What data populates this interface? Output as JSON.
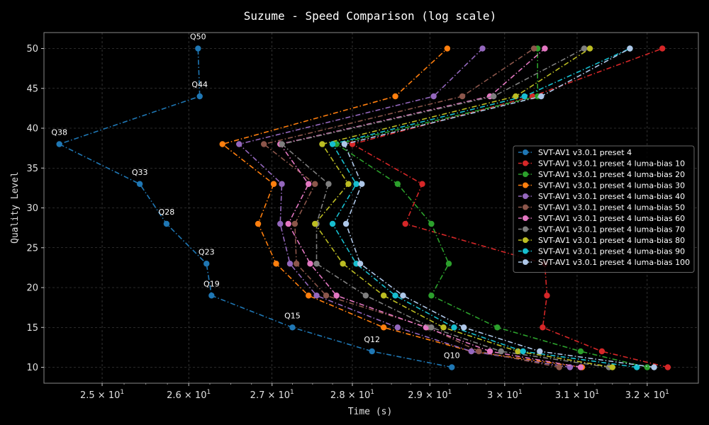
{
  "chart_data": {
    "type": "line",
    "title": "Suzume - Speed Comparison (log scale)",
    "xlabel": "Time (s)",
    "ylabel": "Quality Level",
    "x_scale": "log",
    "xlim": [
      24.35,
      32.75
    ],
    "ylim": [
      8.0,
      52.0
    ],
    "x_ticks": [
      {
        "value": 25,
        "base": "2.5",
        "exp": "1"
      },
      {
        "value": 26,
        "base": "2.6",
        "exp": "1"
      },
      {
        "value": 27,
        "base": "2.7",
        "exp": "1"
      },
      {
        "value": 28,
        "base": "2.8",
        "exp": "1"
      },
      {
        "value": 29,
        "base": "2.9",
        "exp": "1"
      },
      {
        "value": 30,
        "base": "3",
        "exp": "1"
      },
      {
        "value": 31,
        "base": "3.1",
        "exp": "1"
      },
      {
        "value": 32,
        "base": "3.2",
        "exp": "1"
      }
    ],
    "y_ticks": [
      10,
      15,
      20,
      25,
      30,
      35,
      40,
      45,
      50
    ],
    "grid": true,
    "legend_position": "center-right",
    "background": "#000000",
    "series": [
      {
        "name": "SVT-AV1 v3.0.1 preset 4",
        "color": "#1f77b4",
        "x": [
          29.29,
          28.25,
          27.25,
          26.27,
          26.21,
          25.74,
          25.43,
          24.52,
          26.13,
          26.11
        ],
        "y": [
          10,
          12,
          15,
          19,
          23,
          28,
          33,
          38,
          44,
          50
        ]
      },
      {
        "name": "SVT-AV1 v3.0.1 preset 4 luma-bias 10",
        "color": "#d62728",
        "x": [
          32.3,
          31.35,
          30.52,
          30.58,
          30.55,
          28.68,
          28.9,
          28.0,
          30.38,
          32.22
        ],
        "y": [
          10,
          12,
          15,
          19,
          23,
          28,
          33,
          38,
          44,
          50
        ]
      },
      {
        "name": "SVT-AV1 v3.0.1 preset 4 luma-bias 20",
        "color": "#2ca02c",
        "x": [
          32.0,
          31.05,
          29.9,
          29.02,
          29.25,
          29.02,
          28.58,
          27.8,
          30.45,
          30.45
        ],
        "y": [
          10,
          12,
          15,
          19,
          23,
          28,
          33,
          38,
          44,
          50
        ]
      },
      {
        "name": "SVT-AV1 v3.0.1 preset 4 luma-bias 30",
        "color": "#ff7f0e",
        "x": [
          31.07,
          29.55,
          28.4,
          27.45,
          27.05,
          26.83,
          27.02,
          26.4,
          28.55,
          29.23
        ],
        "y": [
          10,
          12,
          15,
          19,
          23,
          28,
          33,
          38,
          44,
          50
        ]
      },
      {
        "name": "SVT-AV1 v3.0.1 preset 4 luma-bias 40",
        "color": "#9467bd",
        "x": [
          30.9,
          29.55,
          28.58,
          27.55,
          27.22,
          27.1,
          27.12,
          26.6,
          29.05,
          29.7
        ],
        "y": [
          10,
          12,
          15,
          19,
          23,
          28,
          33,
          38,
          44,
          50
        ]
      },
      {
        "name": "SVT-AV1 v3.0.1 preset 4 luma-bias 50",
        "color": "#8c564b",
        "x": [
          30.75,
          29.65,
          28.98,
          27.67,
          27.3,
          27.28,
          27.53,
          26.9,
          29.43,
          30.4
        ],
        "y": [
          10,
          12,
          15,
          19,
          23,
          28,
          33,
          38,
          44,
          50
        ]
      },
      {
        "name": "SVT-AV1 v3.0.1 preset 4 luma-bias 60",
        "color": "#e377c2",
        "x": [
          31.05,
          29.8,
          28.95,
          27.8,
          27.47,
          27.2,
          27.45,
          27.1,
          29.8,
          30.55
        ],
        "y": [
          10,
          12,
          15,
          19,
          23,
          28,
          33,
          38,
          44,
          50
        ]
      },
      {
        "name": "SVT-AV1 v3.0.1 preset 4 luma-bias 70",
        "color": "#7f7f7f",
        "x": [
          31.45,
          29.95,
          29.02,
          28.17,
          27.55,
          27.55,
          27.7,
          27.12,
          29.85,
          31.1
        ],
        "y": [
          10,
          12,
          15,
          19,
          23,
          28,
          33,
          38,
          44,
          50
        ]
      },
      {
        "name": "SVT-AV1 v3.0.1 preset 4 luma-bias 80",
        "color": "#bcbd22",
        "x": [
          31.5,
          30.18,
          29.18,
          28.4,
          27.88,
          27.53,
          27.95,
          27.62,
          30.15,
          31.18
        ],
        "y": [
          10,
          12,
          15,
          19,
          23,
          28,
          33,
          38,
          44,
          50
        ]
      },
      {
        "name": "SVT-AV1 v3.0.1 preset 4 luma-bias 90",
        "color": "#17becf",
        "x": [
          31.85,
          30.25,
          29.32,
          28.55,
          28.05,
          27.75,
          28.05,
          27.75,
          30.27,
          31.75
        ],
        "y": [
          10,
          12,
          15,
          19,
          23,
          28,
          33,
          38,
          44,
          50
        ]
      },
      {
        "name": "SVT-AV1 v3.0.1 preset 4 luma-bias 100",
        "color": "#aec7e8",
        "x": [
          32.1,
          30.48,
          29.45,
          28.65,
          28.1,
          27.92,
          28.12,
          27.9,
          30.5,
          31.75
        ],
        "y": [
          10,
          12,
          15,
          19,
          23,
          28,
          33,
          38,
          44,
          50
        ]
      }
    ],
    "annotations": [
      {
        "text": "Q10",
        "x": 29.29,
        "y": 10
      },
      {
        "text": "Q12",
        "x": 28.25,
        "y": 12
      },
      {
        "text": "Q15",
        "x": 27.25,
        "y": 15
      },
      {
        "text": "Q19",
        "x": 26.27,
        "y": 19
      },
      {
        "text": "Q23",
        "x": 26.21,
        "y": 23
      },
      {
        "text": "Q28",
        "x": 25.74,
        "y": 28
      },
      {
        "text": "Q33",
        "x": 25.43,
        "y": 33
      },
      {
        "text": "Q38",
        "x": 24.52,
        "y": 38
      },
      {
        "text": "Q44",
        "x": 26.13,
        "y": 44
      },
      {
        "text": "Q50",
        "x": 26.11,
        "y": 50
      }
    ]
  }
}
